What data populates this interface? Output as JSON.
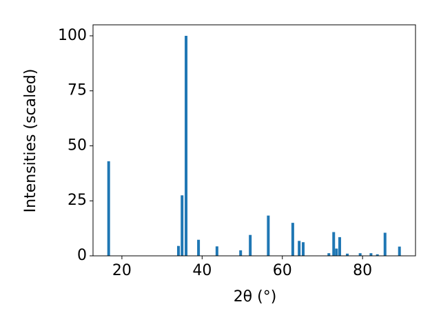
{
  "chart_data": {
    "type": "bar",
    "xlabel": "2θ (°)",
    "ylabel": "Intensities (scaled)",
    "x": [
      16.7,
      34.1,
      35.0,
      36.0,
      39.1,
      43.7,
      49.6,
      52.0,
      56.5,
      62.6,
      64.2,
      65.2,
      71.6,
      72.8,
      73.5,
      74.3,
      76.2,
      79.4,
      82.1,
      83.7,
      85.6,
      89.2
    ],
    "values": [
      43,
      4.5,
      27.5,
      100,
      7.3,
      4.3,
      2.5,
      9.5,
      18.3,
      15,
      6.8,
      6.2,
      1.2,
      10.8,
      3.3,
      8.5,
      1.0,
      1.2,
      1.2,
      0.7,
      10.5,
      4.2
    ],
    "color": "#1f77b4",
    "xlim": [
      12.8,
      93.2
    ],
    "xticks": [
      20,
      40,
      60,
      80
    ],
    "ylim": [
      0,
      105
    ],
    "yticks": [
      0,
      25,
      50,
      75,
      100
    ]
  }
}
